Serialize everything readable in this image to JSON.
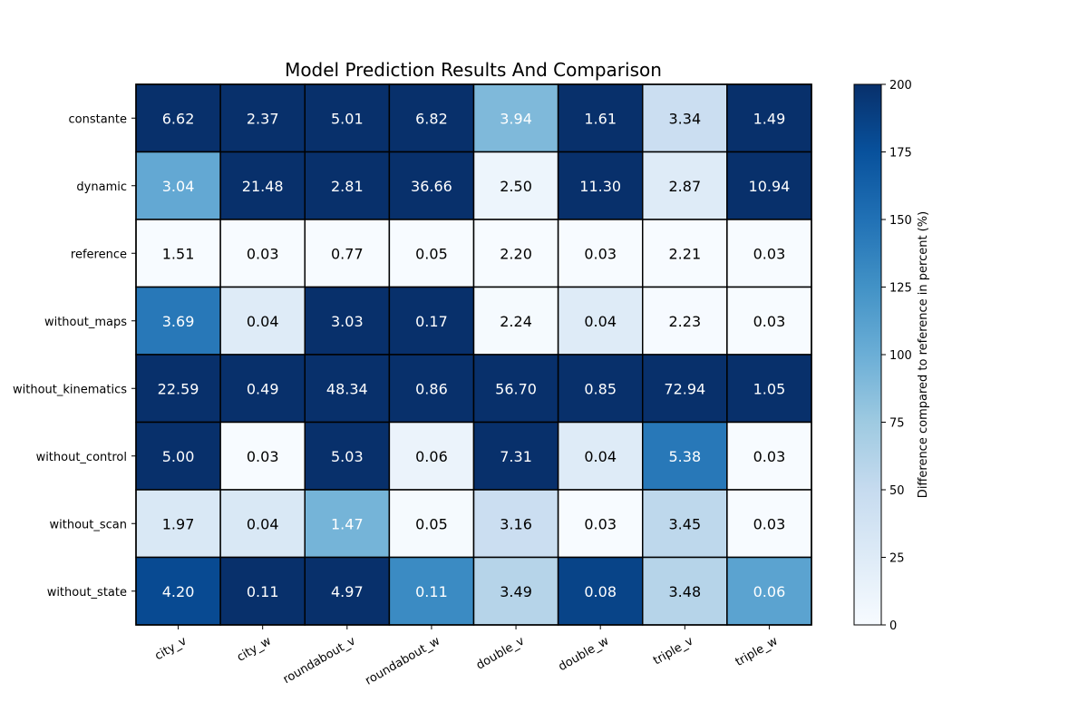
{
  "chart_data": {
    "type": "heatmap",
    "title": "Model Prediction Results And Comparison",
    "xlabel": "",
    "ylabel": "",
    "x_categories": [
      "city_v",
      "city_w",
      "roundabout_v",
      "roundabout_w",
      "double_v",
      "double_w",
      "triple_v",
      "triple_w"
    ],
    "y_categories": [
      "constante",
      "dynamic",
      "reference",
      "without_maps",
      "without_kinematics",
      "without_control",
      "without_scan",
      "without_state"
    ],
    "annotations": [
      [
        "6.62",
        "2.37",
        "5.01",
        "6.82",
        "3.94",
        "1.61",
        "3.34",
        "1.49"
      ],
      [
        "3.04",
        "21.48",
        "2.81",
        "36.66",
        "2.50",
        "11.30",
        "2.87",
        "10.94"
      ],
      [
        "1.51",
        "0.03",
        "0.77",
        "0.05",
        "2.20",
        "0.03",
        "2.21",
        "0.03"
      ],
      [
        "3.69",
        "0.04",
        "3.03",
        "0.17",
        "2.24",
        "0.04",
        "2.23",
        "0.03"
      ],
      [
        "22.59",
        "0.49",
        "48.34",
        "0.86",
        "56.70",
        "0.85",
        "72.94",
        "1.05"
      ],
      [
        "5.00",
        "0.03",
        "5.03",
        "0.06",
        "7.31",
        "0.04",
        "5.38",
        "0.03"
      ],
      [
        "1.97",
        "0.04",
        "1.47",
        "0.05",
        "3.16",
        "0.03",
        "3.45",
        "0.03"
      ],
      [
        "4.20",
        "0.11",
        "4.97",
        "0.11",
        "3.49",
        "0.08",
        "3.48",
        "0.06"
      ]
    ],
    "color_values": [
      [
        200,
        200,
        200,
        200,
        90,
        200,
        45,
        200
      ],
      [
        105,
        200,
        200,
        200,
        10,
        200,
        25,
        200
      ],
      [
        0,
        0,
        0,
        0,
        0,
        0,
        0,
        0
      ],
      [
        145,
        25,
        200,
        200,
        2,
        25,
        1,
        0
      ],
      [
        200,
        200,
        200,
        200,
        200,
        200,
        200,
        200
      ],
      [
        200,
        0,
        200,
        12,
        200,
        25,
        145,
        0
      ],
      [
        30,
        30,
        95,
        2,
        45,
        0,
        55,
        0
      ],
      [
        180,
        200,
        200,
        130,
        60,
        185,
        60,
        110
      ]
    ],
    "colorbar": {
      "label": "Difference compared to reference in percent (%)",
      "range": [
        0,
        200
      ],
      "ticks": [
        "0",
        "25",
        "50",
        "75",
        "100",
        "125",
        "150",
        "175",
        "200"
      ],
      "colormap": "Blues"
    },
    "grid": true
  }
}
